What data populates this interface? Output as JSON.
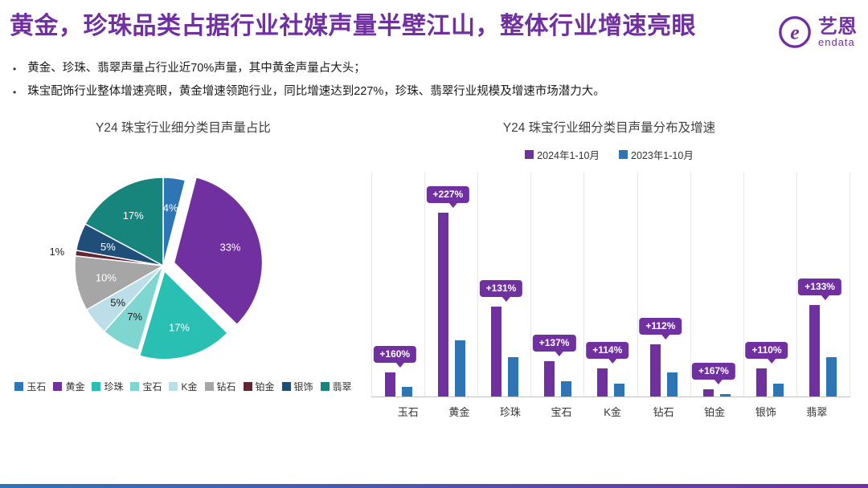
{
  "page": {
    "title": "黄金，珍珠品类占据行业社媒声量半壁江山，整体行业增速亮眼",
    "bullets": [
      "黄金、珍珠、翡翠声量占行业近70%声量，其中黄金声量占大头；",
      "珠宝配饰行业整体增速亮眼，黄金增速领跑行业，同比增速达到227%，珍珠、翡翠行业规模及增速市场潜力大。"
    ],
    "logo": {
      "brand": "艺恩",
      "sub": "endata"
    }
  },
  "colors": {
    "title_purple": "#7030A0",
    "bar_2024": "#7030A0",
    "bar_2023": "#2E75B6",
    "badge": "#7030A0",
    "bottom_bar_left": "#2E75B6",
    "bottom_bar_right": "#7030A0"
  },
  "chart_data": [
    {
      "type": "pie",
      "title": "Y24 珠宝行业细分类目声量占比",
      "labels": [
        "玉石",
        "黄金",
        "珍珠",
        "宝石",
        "K金",
        "钻石",
        "铂金",
        "银饰",
        "翡翠"
      ],
      "values": [
        4,
        33,
        17,
        7,
        5,
        10,
        1,
        5,
        17
      ],
      "unit": "%",
      "colors": [
        "#2E75B6",
        "#7030A0",
        "#29BFB2",
        "#7FD6D0",
        "#BCDEE8",
        "#A6A6A6",
        "#632433",
        "#1F4E79",
        "#17857B"
      ],
      "exploded_slices": {
        "黄金": 14,
        "珍珠": 7
      },
      "legend_position": "bottom"
    },
    {
      "type": "bar",
      "title": "Y24 珠宝行业细分类目声量分布及增速",
      "categories": [
        "玉石",
        "黄金",
        "珍珠",
        "宝石",
        "K金",
        "钻石",
        "铂金",
        "银饰",
        "翡翠"
      ],
      "series": [
        {
          "name": "2024年1-10月",
          "color": "#7030A0",
          "values": [
            13,
            98,
            48,
            19,
            15,
            28,
            4,
            15,
            49
          ]
        },
        {
          "name": "2023年1-10月",
          "color": "#2E75B6",
          "values": [
            5,
            30,
            21,
            8,
            7,
            13,
            1.5,
            7,
            21
          ]
        }
      ],
      "growth_labels": [
        "+160%",
        "+227%",
        "+131%",
        "+137%",
        "+114%",
        "+112%",
        "+167%",
        "+110%",
        "+133%"
      ],
      "ylim": [
        0,
        120
      ],
      "grid": "vertical-separators",
      "legend_position": "top"
    }
  ]
}
